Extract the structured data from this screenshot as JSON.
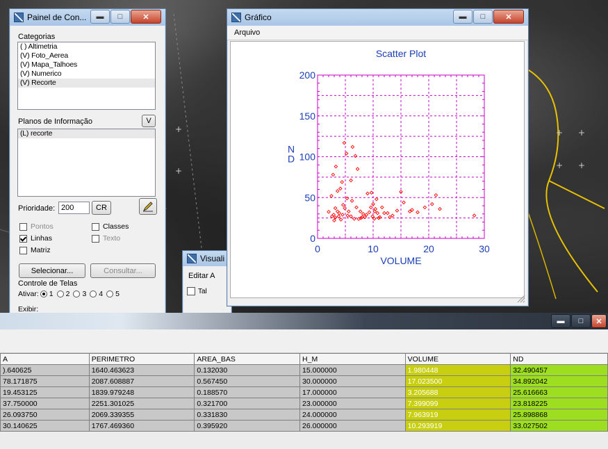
{
  "painel": {
    "title": "Painel de Con...",
    "categorias_label": "Categorias",
    "categorias": [
      "( ) Altimetria",
      "(V) Foto_Aerea",
      "(V) Mapa_Talhoes",
      "(V) Numerico",
      "(V) Recorte"
    ],
    "planos_label": "Planos de Informação",
    "planos_btn": "V",
    "planos": [
      "(L) recorte"
    ],
    "prioridade_label": "Prioridade:",
    "prioridade_value": "200",
    "cr_btn": "CR",
    "pontos": "Pontos",
    "classes": "Classes",
    "linhas": "Linhas",
    "texto": "Texto",
    "matriz": "Matriz",
    "selecionar_btn": "Selecionar...",
    "consultar_btn": "Consultar...",
    "controle_label": "Controle de Telas",
    "ativar_label": "Ativar:",
    "ativar_options": [
      "1",
      "2",
      "3",
      "4",
      "5"
    ],
    "exibir_label": "Exibir:"
  },
  "visual": {
    "title": "Visuali",
    "menu": "Editar  A",
    "tool": "Tal"
  },
  "grafico": {
    "title": "Gráfico",
    "menu_arquivo": "Arquivo"
  },
  "chart_data": {
    "type": "scatter",
    "title": "Scatter Plot",
    "xlabel": "VOLUME",
    "ylabel": "N D",
    "xlim": [
      0,
      30
    ],
    "ylim": [
      0,
      200
    ],
    "xticks": [
      0,
      10,
      20,
      30
    ],
    "yticks": [
      0,
      50,
      100,
      150,
      200
    ],
    "grid": true,
    "color": "#ff0000",
    "points": [
      [
        2.0,
        32.5
      ],
      [
        17.0,
        34.9
      ],
      [
        3.2,
        25.6
      ],
      [
        7.4,
        23.8
      ],
      [
        8.0,
        25.9
      ],
      [
        10.3,
        33.0
      ],
      [
        2.8,
        78
      ],
      [
        3.3,
        88
      ],
      [
        4.1,
        61
      ],
      [
        5.2,
        104
      ],
      [
        4.8,
        117
      ],
      [
        6.3,
        112
      ],
      [
        6.8,
        101
      ],
      [
        7.2,
        85
      ],
      [
        6.0,
        71
      ],
      [
        4.4,
        69
      ],
      [
        3.6,
        58
      ],
      [
        2.5,
        52
      ],
      [
        5.3,
        49
      ],
      [
        6.2,
        46
      ],
      [
        4.6,
        41
      ],
      [
        3.2,
        37
      ],
      [
        2.9,
        29
      ],
      [
        2.6,
        27
      ],
      [
        3.8,
        27
      ],
      [
        4.5,
        29
      ],
      [
        5.4,
        28
      ],
      [
        6.0,
        27
      ],
      [
        5.6,
        33
      ],
      [
        4.9,
        37
      ],
      [
        3.6,
        33
      ],
      [
        3.9,
        31
      ],
      [
        7.0,
        38
      ],
      [
        7.7,
        33
      ],
      [
        8.2,
        30
      ],
      [
        8.8,
        29
      ],
      [
        9.3,
        32
      ],
      [
        9.6,
        38
      ],
      [
        10.0,
        42
      ],
      [
        10.4,
        36
      ],
      [
        10.8,
        31
      ],
      [
        11.2,
        26
      ],
      [
        9.0,
        55
      ],
      [
        9.7,
        56
      ],
      [
        10.6,
        48
      ],
      [
        11.6,
        38
      ],
      [
        12.6,
        31
      ],
      [
        13.5,
        28
      ],
      [
        14.3,
        34
      ],
      [
        15.0,
        57
      ],
      [
        15.5,
        44
      ],
      [
        16.6,
        33
      ],
      [
        18.0,
        32
      ],
      [
        19.3,
        38
      ],
      [
        20.6,
        42
      ],
      [
        21.3,
        53
      ],
      [
        22.0,
        36
      ],
      [
        28.2,
        28
      ],
      [
        8.5,
        26
      ],
      [
        7.8,
        25
      ],
      [
        6.6,
        24
      ],
      [
        11.0,
        25
      ],
      [
        12.0,
        31
      ],
      [
        13.0,
        26
      ],
      [
        3.0,
        22
      ],
      [
        4.2,
        23
      ],
      [
        9.9,
        27
      ],
      [
        10.2,
        24
      ]
    ]
  },
  "table": {
    "columns": [
      "A",
      "PERIMETRO",
      "AREA_BAS",
      "H_M",
      "VOLUME",
      "ND"
    ],
    "rows": [
      [
        ").640625",
        "1640.463623",
        "0.132030",
        "15.000000",
        "1.980448",
        "32.490457"
      ],
      [
        "78.171875",
        "2087.608887",
        "0.567450",
        "30.000000",
        "17.023500",
        "34.892042"
      ],
      [
        "19.453125",
        "1839.979248",
        "0.188570",
        "17.000000",
        "3.205688",
        "25.616663"
      ],
      [
        "37.750000",
        "2251.301025",
        "0.321700",
        "23.000000",
        "7.399099",
        "23.818225"
      ],
      [
        "26.093750",
        "2069.339355",
        "0.331830",
        "24.000000",
        "7.963919",
        "25.898868"
      ],
      [
        "30.140625",
        "1767.469360",
        "0.395920",
        "26.000000",
        "10.293919",
        "33.027502"
      ]
    ]
  }
}
